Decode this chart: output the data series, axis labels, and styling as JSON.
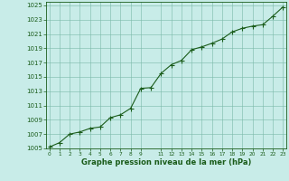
{
  "x": [
    0,
    1,
    2,
    3,
    4,
    5,
    6,
    7,
    8,
    9,
    10,
    11,
    12,
    13,
    14,
    15,
    16,
    17,
    18,
    19,
    20,
    21,
    22,
    23
  ],
  "y": [
    1005.2,
    1005.8,
    1007.0,
    1007.3,
    1007.8,
    1008.0,
    1009.3,
    1009.7,
    1010.6,
    1013.4,
    1013.5,
    1015.5,
    1016.7,
    1017.3,
    1018.8,
    1019.2,
    1019.7,
    1020.3,
    1021.3,
    1021.8,
    1022.1,
    1022.3,
    1023.5,
    1024.8
  ],
  "xlim_min": -0.3,
  "xlim_max": 23.3,
  "ylim_min": 1005,
  "ylim_max": 1025.5,
  "yticks": [
    1005,
    1007,
    1009,
    1011,
    1013,
    1015,
    1017,
    1019,
    1021,
    1023,
    1025
  ],
  "xlabel": "Graphe pression niveau de la mer (hPa)",
  "line_color": "#1a5c1a",
  "marker_color": "#1a5c1a",
  "bg_color": "#c8ece8",
  "grid_color": "#7ab8a8",
  "axis_color": "#1a5c1a",
  "xlabel_color": "#1a5c1a",
  "tick_color": "#1a5c1a",
  "marker_size": 2.0,
  "line_width": 0.8,
  "ytick_fontsize": 5.0,
  "xtick_fontsize": 4.2,
  "xlabel_fontsize": 6.0
}
